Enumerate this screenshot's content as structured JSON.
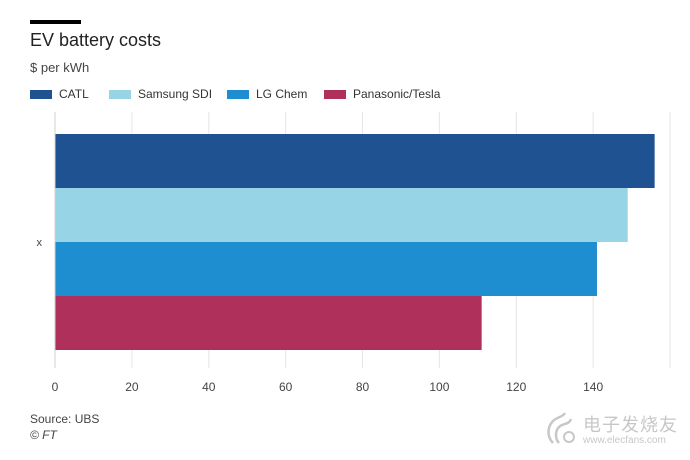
{
  "chart_data": {
    "type": "bar",
    "orientation": "horizontal",
    "title": "EV battery costs",
    "subtitle": "$ per kWh",
    "categories": [
      "x"
    ],
    "series": [
      {
        "name": "CATL",
        "values": [
          156
        ],
        "color": "#1f5290"
      },
      {
        "name": "Samsung SDI",
        "values": [
          149
        ],
        "color": "#96d4e6"
      },
      {
        "name": "LG Chem",
        "values": [
          141
        ],
        "color": "#1f8ed0"
      },
      {
        "name": "Panasonic/Tesla",
        "values": [
          111
        ],
        "color": "#b0305c"
      }
    ],
    "xlim": [
      0,
      160
    ],
    "xticks": [
      0,
      20,
      40,
      60,
      80,
      100,
      120,
      140
    ],
    "xlabel": "",
    "ylabel": "",
    "grid": true,
    "legend": "top-left",
    "source": "Source: UBS",
    "credit": "© FT"
  },
  "watermark": {
    "text_cn": "电子发烧友",
    "url": "www.elecfans.com"
  }
}
